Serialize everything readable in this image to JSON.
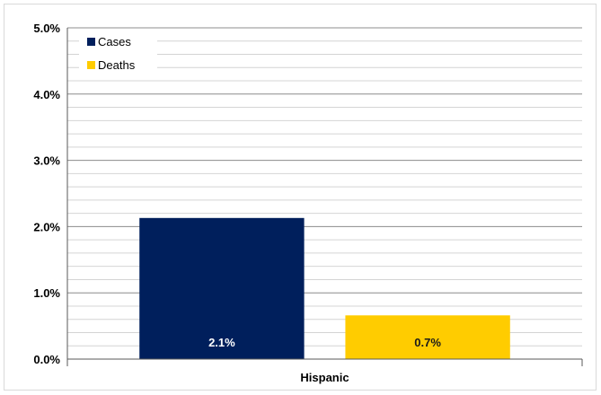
{
  "chart_data": {
    "type": "bar",
    "categories": [
      "Hispanic"
    ],
    "series": [
      {
        "name": "Cases",
        "values": [
          2.13
        ],
        "label": "2.1%",
        "color": "#001f5c",
        "label_color": "#ffffff"
      },
      {
        "name": "Deaths",
        "values": [
          0.66
        ],
        "label": "0.7%",
        "color": "#ffcc00",
        "label_color": "#1a1a1a"
      }
    ],
    "ylim": [
      0,
      5
    ],
    "y_ticks": [
      "0.0%",
      "1.0%",
      "2.0%",
      "3.0%",
      "4.0%",
      "5.0%"
    ],
    "y_tick_values": [
      0,
      1,
      2,
      3,
      4,
      5
    ],
    "minor_grid_step": 0.2,
    "grid": true,
    "legend_position": "top-left",
    "xlabel": "",
    "ylabel": "",
    "title": ""
  }
}
